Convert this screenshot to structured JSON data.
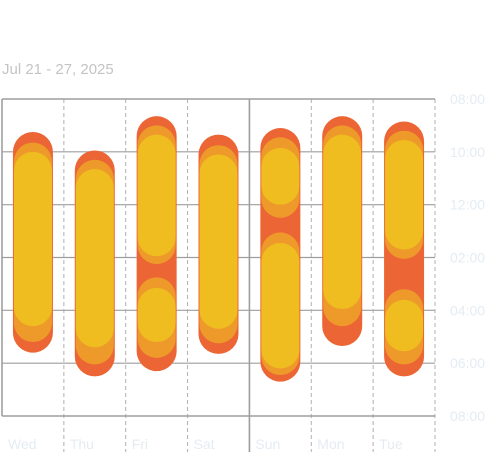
{
  "header": {
    "date_range": "Jul 21 - 27, 2025"
  },
  "colors": {
    "deep": "#ec6534",
    "mid": "#ee9a2a",
    "core": "#efbd20",
    "grid_major": "#9e9e9e",
    "grid_minor": "#b0b0b0",
    "tick_text": "#e4ecf2"
  },
  "chart_data": {
    "type": "range-bar",
    "title": "",
    "xlabel": "",
    "ylabel": "",
    "categories": [
      "Wed",
      "Thu",
      "Fri",
      "Sat",
      "Sun",
      "Mon",
      "Tue"
    ],
    "y_ticks": [
      "08:00",
      "10:00",
      "12:00",
      "02:00",
      "04:00",
      "06:00",
      "08:00"
    ],
    "y_range_hours": [
      0,
      12
    ],
    "grid": true,
    "layers": [
      "deep",
      "mid",
      "core"
    ],
    "days": [
      {
        "day": "Wed",
        "segments": [
          {
            "layer": "deep",
            "start": 1.25,
            "end": 9.6
          },
          {
            "layer": "mid",
            "start": 1.65,
            "end": 9.2
          },
          {
            "layer": "core",
            "start": 2.0,
            "end": 8.6
          }
        ]
      },
      {
        "day": "Thu",
        "segments": [
          {
            "layer": "deep",
            "start": 1.95,
            "end": 10.5
          },
          {
            "layer": "mid",
            "start": 2.3,
            "end": 10.05
          },
          {
            "layer": "core",
            "start": 2.65,
            "end": 9.4
          }
        ]
      },
      {
        "day": "Fri",
        "segments": [
          {
            "layer": "deep",
            "start": 0.65,
            "end": 10.3
          },
          {
            "layer": "mid",
            "start": 1.0,
            "end": 6.25
          },
          {
            "layer": "core",
            "start": 1.35,
            "end": 5.95
          },
          {
            "layer": "mid",
            "start": 6.75,
            "end": 9.8
          },
          {
            "layer": "core",
            "start": 7.15,
            "end": 9.2
          }
        ]
      },
      {
        "day": "Sat",
        "segments": [
          {
            "layer": "deep",
            "start": 1.35,
            "end": 9.65
          },
          {
            "layer": "mid",
            "start": 1.75,
            "end": 9.25
          },
          {
            "layer": "core",
            "start": 2.1,
            "end": 8.7
          }
        ]
      },
      {
        "day": "Sun",
        "segments": [
          {
            "layer": "deep",
            "start": 1.1,
            "end": 10.7
          },
          {
            "layer": "mid",
            "start": 1.45,
            "end": 4.5
          },
          {
            "layer": "core",
            "start": 1.85,
            "end": 4.0
          },
          {
            "layer": "mid",
            "start": 5.05,
            "end": 10.45
          },
          {
            "layer": "core",
            "start": 5.45,
            "end": 10.2
          }
        ]
      },
      {
        "day": "Mon",
        "segments": [
          {
            "layer": "deep",
            "start": 0.65,
            "end": 9.35
          },
          {
            "layer": "mid",
            "start": 1.0,
            "end": 8.6
          },
          {
            "layer": "core",
            "start": 1.35,
            "end": 7.95
          }
        ]
      },
      {
        "day": "Tue",
        "segments": [
          {
            "layer": "deep",
            "start": 0.85,
            "end": 10.5
          },
          {
            "layer": "mid",
            "start": 1.2,
            "end": 6.05
          },
          {
            "layer": "core",
            "start": 1.55,
            "end": 5.7
          },
          {
            "layer": "mid",
            "start": 7.2,
            "end": 10.05
          },
          {
            "layer": "core",
            "start": 7.6,
            "end": 9.55
          }
        ]
      }
    ]
  }
}
